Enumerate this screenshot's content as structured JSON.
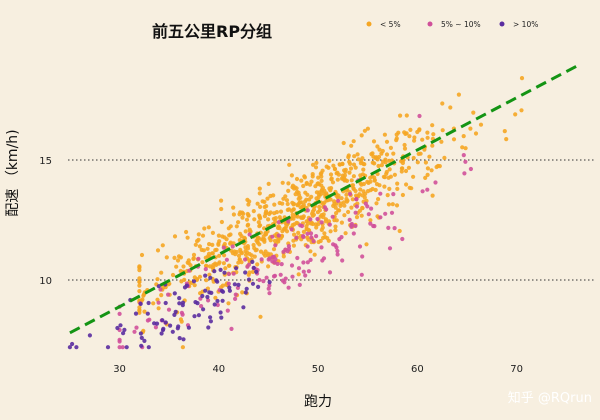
{
  "chart_data": {
    "type": "scatter",
    "title": "前五公里RP分组",
    "xlabel": "跑力",
    "ylabel": "配速 （km/h)",
    "xlim": [
      24,
      78
    ],
    "ylim": [
      7,
      19.5
    ],
    "xticks": [
      30,
      40,
      50,
      60,
      70
    ],
    "yticks": [
      10,
      15
    ],
    "grid": "horizontal dotted at y ticks",
    "legend_position": "top-right",
    "series": [
      {
        "name": "< 5%",
        "color": "#f5a623",
        "x_range": [
          32,
          77
        ],
        "count": 820,
        "density_center": [
          48,
          12.7
        ]
      },
      {
        "name": "5% ~ 10%",
        "color": "#d0509a",
        "x_range": [
          30,
          75
        ],
        "count": 170,
        "density_center": [
          47,
          11.0
        ]
      },
      {
        "name": "> 10%",
        "color": "#5a2ca0",
        "x_range": [
          25,
          48
        ],
        "count": 90,
        "density_center": [
          37,
          8.9
        ]
      }
    ],
    "trend_line": {
      "style": "dashed",
      "color": "#149414",
      "x": [
        25,
        76
      ],
      "y": [
        7.8,
        18.9
      ]
    }
  },
  "watermark": "知乎 @RQrun"
}
